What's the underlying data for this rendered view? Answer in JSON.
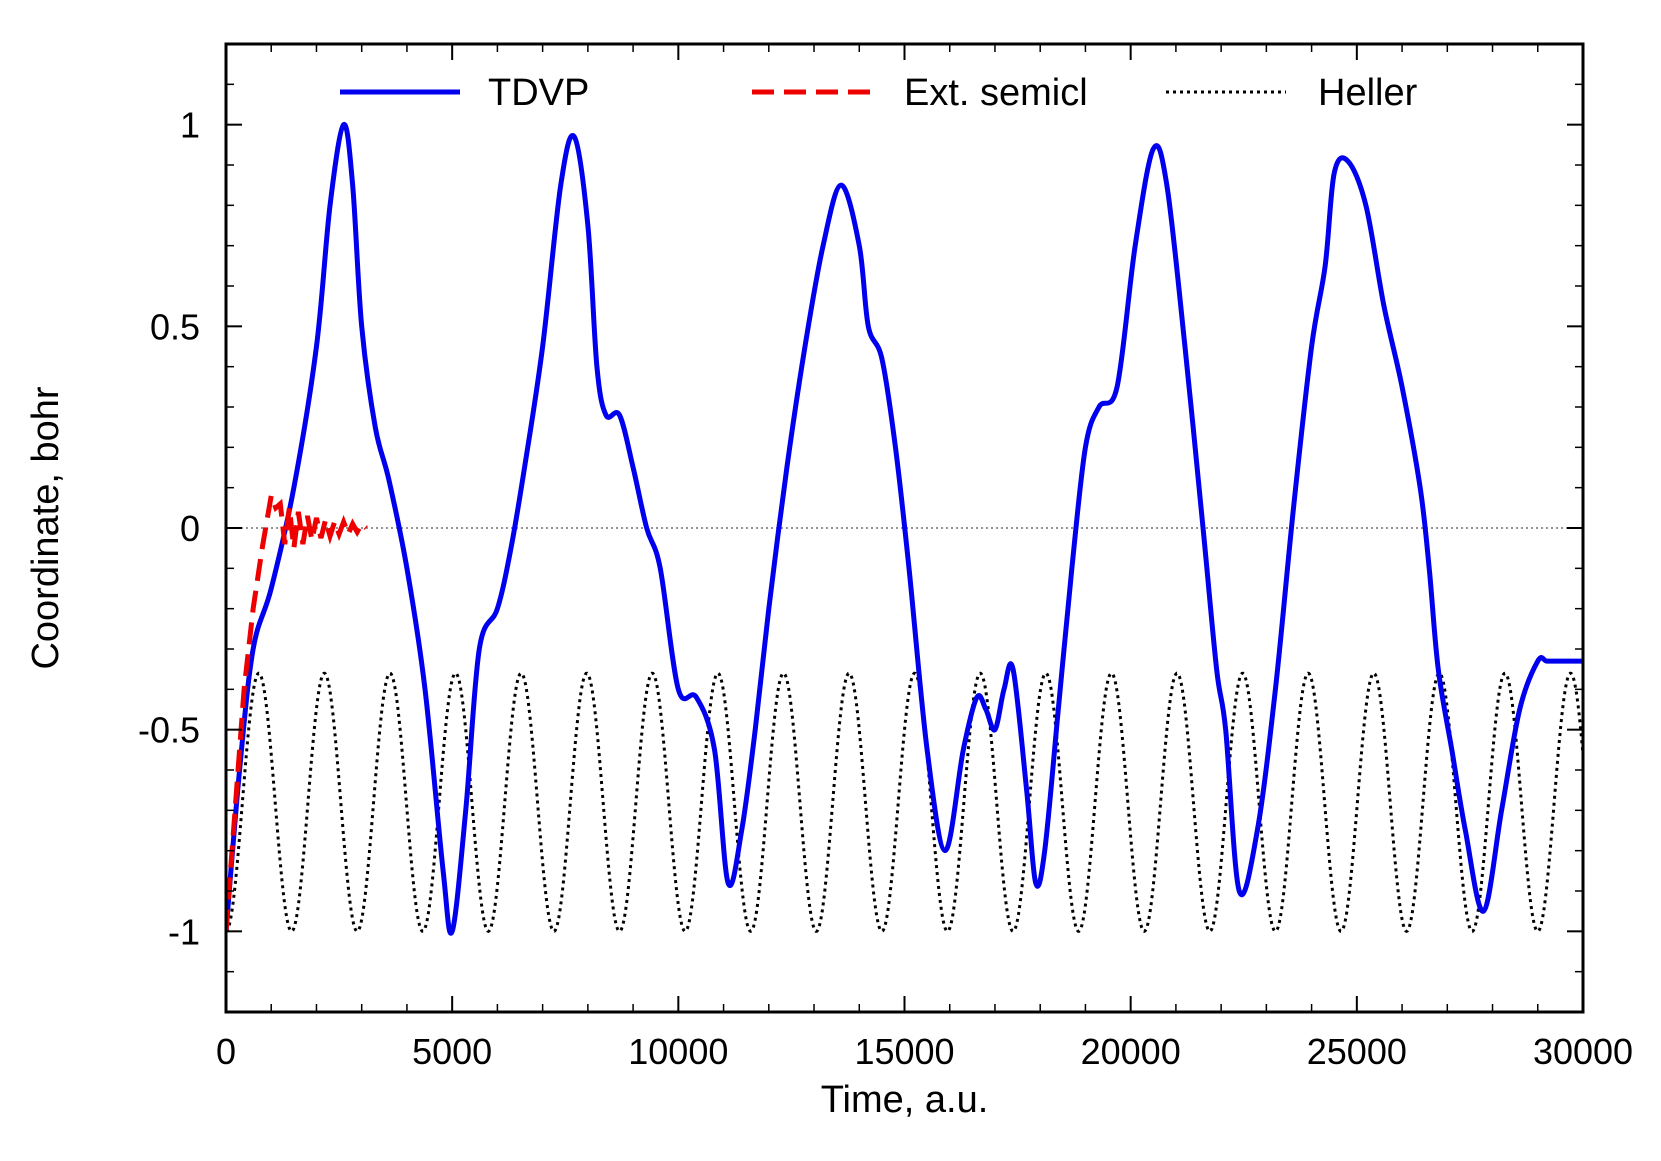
{
  "chart_data": {
    "type": "line",
    "title": "",
    "xlabel": "Time, a.u.",
    "ylabel": "Coordinate, bohr",
    "xlim": [
      0,
      30000
    ],
    "ylim": [
      -1.2,
      1.2
    ],
    "x_ticks": [
      0,
      5000,
      10000,
      15000,
      20000,
      25000,
      30000
    ],
    "x_tick_labels": [
      "0",
      "5000",
      "10000",
      "15000",
      "20000",
      "25000",
      "30000"
    ],
    "y_ticks": [
      -1,
      -0.5,
      0,
      0.5,
      1
    ],
    "y_tick_labels": [
      "-1",
      "-0.5",
      "0",
      "0.5",
      "1"
    ],
    "grid": false,
    "zero_line": true,
    "legend_position": "top",
    "series": [
      {
        "name": "TDVP",
        "color": "#0000ee",
        "style": "solid",
        "x": [
          0,
          300,
          600,
          1000,
          1500,
          2000,
          2300,
          2600,
          2800,
          3000,
          3300,
          3600,
          4000,
          4400,
          4800,
          5000,
          5300,
          5600,
          6000,
          6300,
          6600,
          7000,
          7400,
          7700,
          8000,
          8200,
          8400,
          8700,
          9000,
          9300,
          9600,
          10000,
          10400,
          10800,
          11100,
          11400,
          11700,
          12000,
          12400,
          12800,
          13200,
          13600,
          14000,
          14200,
          14500,
          14800,
          15100,
          15500,
          15900,
          16300,
          16600,
          16800,
          17000,
          17200,
          17400,
          17700,
          17900,
          18100,
          18400,
          18700,
          19000,
          19300,
          19700,
          20100,
          20500,
          20800,
          21200,
          21600,
          21900,
          22100,
          22400,
          22800,
          23200,
          23600,
          24000,
          24300,
          24500,
          24800,
          25200,
          25600,
          26000,
          26400,
          26600,
          26800,
          27100,
          27400,
          27800,
          28200,
          28600,
          29000,
          29200,
          29500,
          29700,
          30000
        ],
        "values": [
          -1.0,
          -0.6,
          -0.3,
          -0.15,
          0.1,
          0.45,
          0.8,
          1.0,
          0.85,
          0.5,
          0.25,
          0.12,
          -0.1,
          -0.4,
          -0.85,
          -1.0,
          -0.7,
          -0.3,
          -0.2,
          -0.05,
          0.15,
          0.45,
          0.85,
          0.97,
          0.75,
          0.4,
          0.28,
          0.28,
          0.15,
          0.0,
          -0.1,
          -0.4,
          -0.42,
          -0.55,
          -0.88,
          -0.75,
          -0.5,
          -0.2,
          0.15,
          0.45,
          0.7,
          0.85,
          0.7,
          0.5,
          0.42,
          0.2,
          -0.1,
          -0.55,
          -0.8,
          -0.55,
          -0.42,
          -0.45,
          -0.5,
          -0.4,
          -0.35,
          -0.65,
          -0.88,
          -0.8,
          -0.45,
          -0.1,
          0.2,
          0.3,
          0.35,
          0.7,
          0.94,
          0.85,
          0.45,
          0.0,
          -0.35,
          -0.5,
          -0.9,
          -0.75,
          -0.4,
          0.05,
          0.45,
          0.65,
          0.88,
          0.91,
          0.8,
          0.55,
          0.35,
          0.1,
          -0.1,
          -0.35,
          -0.55,
          -0.75,
          -0.95,
          -0.7,
          -0.45,
          -0.33,
          -0.33,
          -0.33,
          -0.33,
          -0.33
        ]
      },
      {
        "name": "Ext. semicl",
        "color": "#ee0000",
        "style": "dashed",
        "x": [
          0,
          200,
          400,
          600,
          800,
          1000,
          1100,
          1200,
          1300,
          1400,
          1500,
          1600,
          1700,
          1800,
          1900,
          2000,
          2100,
          2200,
          2300,
          2400,
          2500,
          2600,
          2700,
          2800,
          2900,
          3000,
          3100
        ],
        "values": [
          -1.0,
          -0.7,
          -0.4,
          -0.2,
          -0.05,
          0.08,
          0.05,
          0.06,
          -0.04,
          0.05,
          -0.05,
          0.04,
          -0.04,
          0.03,
          -0.03,
          0.025,
          -0.025,
          0.02,
          -0.02,
          0.015,
          -0.015,
          0.015,
          -0.015,
          0.01,
          -0.01,
          0.01,
          0.0
        ]
      },
      {
        "name": "Heller",
        "color": "#000000",
        "style": "dotted",
        "oscillation": {
          "min": -1.0,
          "max": -0.36,
          "period": 1450,
          "phase_start": "min"
        }
      }
    ]
  }
}
